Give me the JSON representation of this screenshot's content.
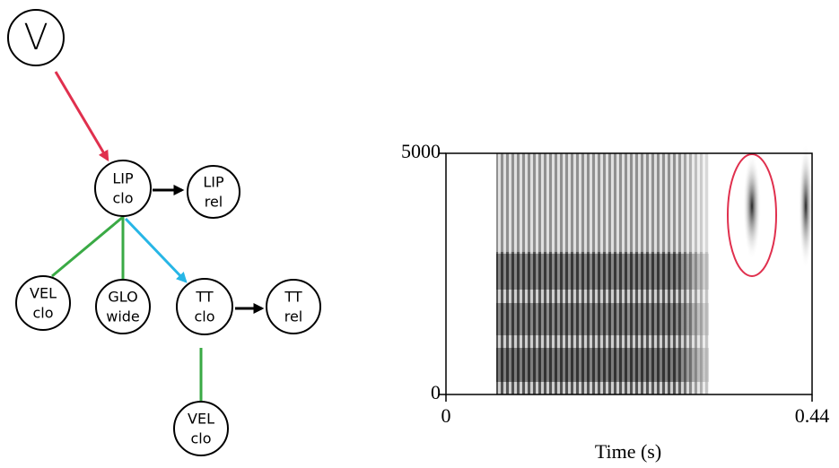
{
  "diagram": {
    "nodes": [
      {
        "lines": [
          "V"
        ]
      },
      {
        "lines": [
          "LIP",
          "clo"
        ]
      },
      {
        "lines": [
          "LIP",
          "rel"
        ]
      },
      {
        "lines": [
          "VEL",
          "clo"
        ]
      },
      {
        "lines": [
          "GLO",
          "wide"
        ]
      },
      {
        "lines": [
          "TT",
          "clo"
        ]
      },
      {
        "lines": [
          "TT",
          "rel"
        ]
      },
      {
        "lines": [
          "VEL",
          "clo"
        ]
      }
    ]
  },
  "spectrogram": {
    "xlabel": "Time (s)",
    "xlim": [
      0,
      0.44
    ],
    "xticks": [
      0,
      0.44
    ],
    "ylim": [
      0,
      5000
    ],
    "yticks": [
      0,
      5000
    ]
  }
}
